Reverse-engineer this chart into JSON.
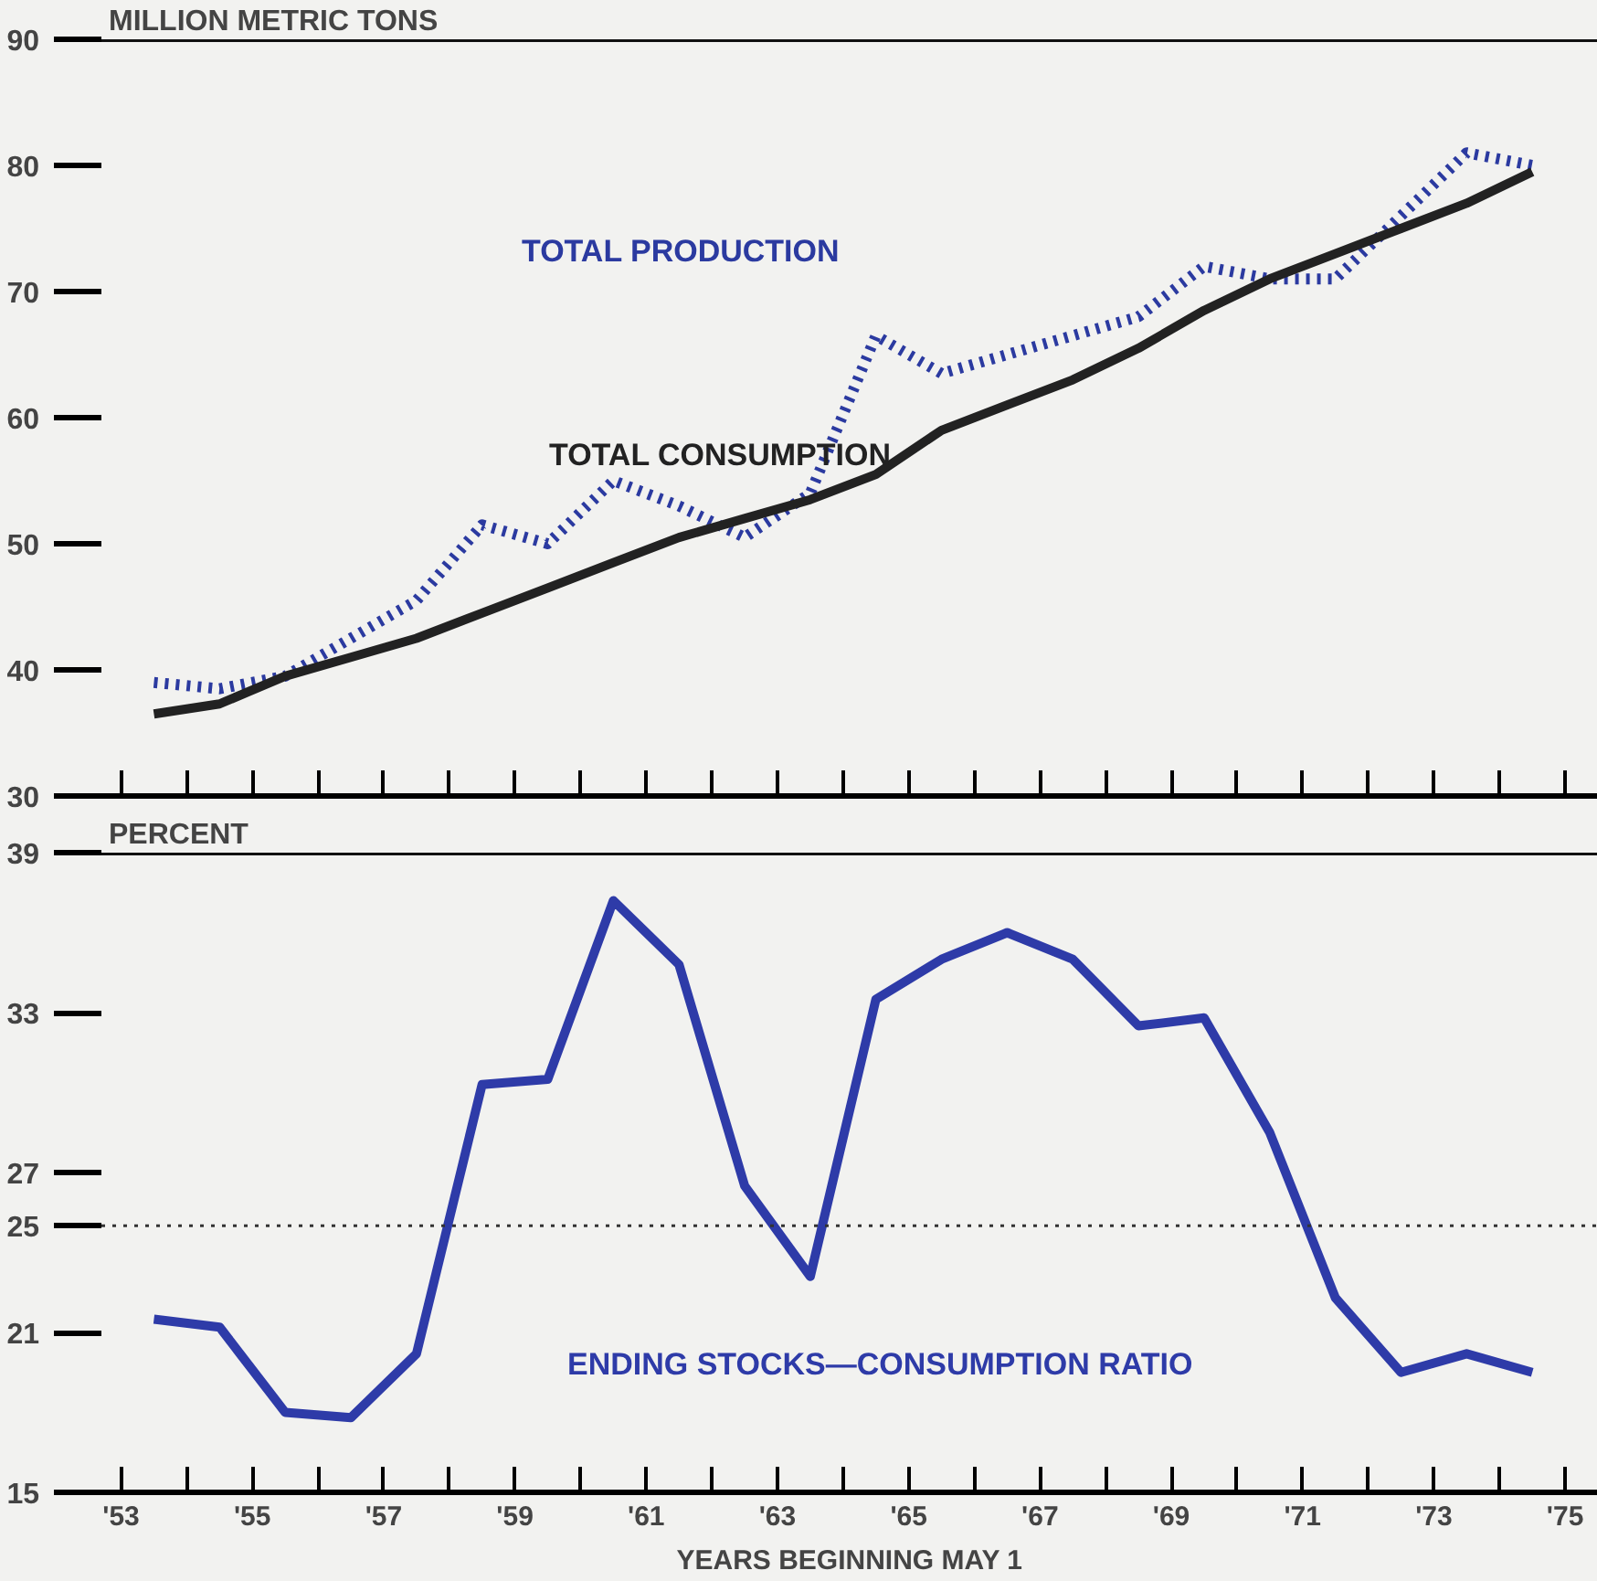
{
  "chart_data": [
    {
      "type": "line",
      "ylabel": "MILLION METRIC TONS",
      "x": [
        1953.5,
        1954.5,
        1955.5,
        1956.5,
        1957.5,
        1958.5,
        1959.5,
        1960.5,
        1961.5,
        1962.5,
        1963.5,
        1964.5,
        1965.5,
        1966.5,
        1967.5,
        1968.5,
        1969.5,
        1970.5,
        1971.5,
        1972.5,
        1973.5,
        1974.5
      ],
      "series": [
        {
          "name": "TOTAL PRODUCTION",
          "color": "#2b3aa0",
          "line_style": "dotted",
          "values": [
            39,
            38.5,
            39.5,
            42.5,
            45.5,
            51.5,
            50,
            55,
            53,
            50.5,
            54,
            66.5,
            63.5,
            65,
            66.5,
            68,
            72,
            71,
            71,
            76,
            81,
            80
          ]
        },
        {
          "name": "TOTAL CONSUMPTION",
          "color": "#222222",
          "line_style": "solid",
          "values": [
            36.5,
            37.3,
            39.5,
            41,
            42.5,
            44.5,
            46.5,
            48.5,
            50.5,
            52,
            53.5,
            55.5,
            59,
            61,
            63,
            65.5,
            68.5,
            71,
            73,
            75,
            77,
            79.5
          ]
        }
      ],
      "xlim": [
        1952.7,
        1975.5
      ],
      "xticks": [
        1953,
        1954,
        1955,
        1956,
        1957,
        1958,
        1959,
        1960,
        1961,
        1962,
        1963,
        1964,
        1965,
        1966,
        1967,
        1968,
        1969,
        1970,
        1971,
        1972,
        1973,
        1974,
        1975
      ],
      "ylim": [
        30,
        90
      ],
      "yticks": [
        30,
        40,
        50,
        60,
        70,
        80,
        90
      ],
      "tick_labels": "y",
      "legend": false,
      "grid": false
    },
    {
      "type": "line",
      "ylabel": "PERCENT",
      "xlabel": "YEARS BEGINNING MAY 1",
      "x": [
        1953.5,
        1954.5,
        1955.5,
        1956.5,
        1957.5,
        1958.5,
        1959.5,
        1960.5,
        1961.5,
        1962.5,
        1963.5,
        1964.5,
        1965.5,
        1966.5,
        1967.5,
        1968.5,
        1969.5,
        1970.5,
        1971.5,
        1972.5,
        1973.5,
        1974.5
      ],
      "series": [
        {
          "name": "ENDING STOCKS—CONSUMPTION RATIO",
          "color": "#2e3ba8",
          "line_style": "solid",
          "values": [
            21.5,
            21.2,
            18,
            17.8,
            20.2,
            30.3,
            30.5,
            37.2,
            34.8,
            26.5,
            23.1,
            33.5,
            35,
            36,
            35,
            32.5,
            32.8,
            28.5,
            22.3,
            19.5,
            20.2,
            19.5
          ]
        }
      ],
      "xlim": [
        1952.7,
        1975.5
      ],
      "xticks": [
        {
          "value": 1953,
          "label": "'53"
        },
        {
          "value": 1954,
          "label": null
        },
        {
          "value": 1955,
          "label": "'55"
        },
        {
          "value": 1956,
          "label": null
        },
        {
          "value": 1957,
          "label": "'57"
        },
        {
          "value": 1958,
          "label": null
        },
        {
          "value": 1959,
          "label": "'59"
        },
        {
          "value": 1960,
          "label": null
        },
        {
          "value": 1961,
          "label": "'61"
        },
        {
          "value": 1962,
          "label": null
        },
        {
          "value": 1963,
          "label": "'63"
        },
        {
          "value": 1964,
          "label": null
        },
        {
          "value": 1965,
          "label": "'65"
        },
        {
          "value": 1966,
          "label": null
        },
        {
          "value": 1967,
          "label": "'67"
        },
        {
          "value": 1968,
          "label": null
        },
        {
          "value": 1969,
          "label": "'69"
        },
        {
          "value": 1970,
          "label": null
        },
        {
          "value": 1971,
          "label": "'71"
        },
        {
          "value": 1972,
          "label": null
        },
        {
          "value": 1973,
          "label": "'73"
        },
        {
          "value": 1974,
          "label": null
        },
        {
          "value": 1975,
          "label": "'75"
        }
      ],
      "ylim": [
        15,
        39
      ],
      "yticks": [
        15,
        21,
        25,
        27,
        33,
        39
      ],
      "ref_lines": [
        {
          "axis": "y",
          "value": 25,
          "color": "#333333",
          "line_style": "dotted"
        }
      ],
      "legend": false,
      "grid": false
    }
  ]
}
